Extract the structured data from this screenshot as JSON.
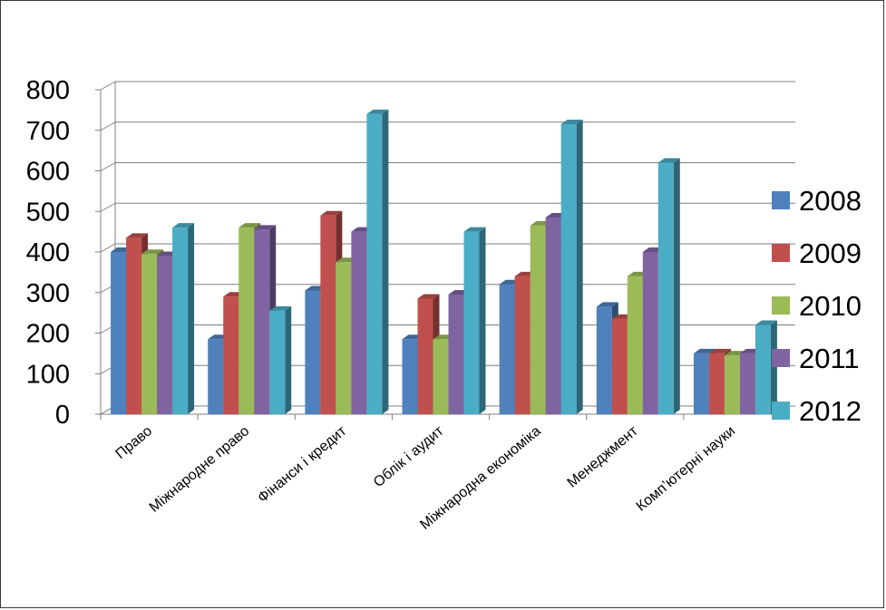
{
  "chart_data": {
    "type": "bar",
    "title": "",
    "xlabel": "",
    "ylabel": "",
    "ylim": [
      0,
      800
    ],
    "yticks": [
      0,
      100,
      200,
      300,
      400,
      500,
      600,
      700,
      800
    ],
    "grid": true,
    "legend_position": "right",
    "categories": [
      "Право",
      "Міжнародне право",
      "Фінанси і кредит",
      "Облік і аудит",
      "Міжнародна економіка",
      "Менеджмент",
      "Комп’ютерні  науки"
    ],
    "series": [
      {
        "name": "2008",
        "color": "#4F81BD",
        "values": [
          400,
          185,
          305,
          185,
          320,
          265,
          150
        ]
      },
      {
        "name": "2009",
        "color": "#C0504D",
        "values": [
          435,
          290,
          490,
          285,
          340,
          235,
          150
        ]
      },
      {
        "name": "2010",
        "color": "#9BBB59",
        "values": [
          395,
          460,
          375,
          185,
          465,
          340,
          145
        ]
      },
      {
        "name": "2011",
        "color": "#8064A2",
        "values": [
          390,
          455,
          450,
          295,
          485,
          400,
          150
        ]
      },
      {
        "name": "2012",
        "color": "#4BACC6",
        "values": [
          460,
          255,
          740,
          450,
          715,
          620,
          220
        ]
      }
    ]
  }
}
